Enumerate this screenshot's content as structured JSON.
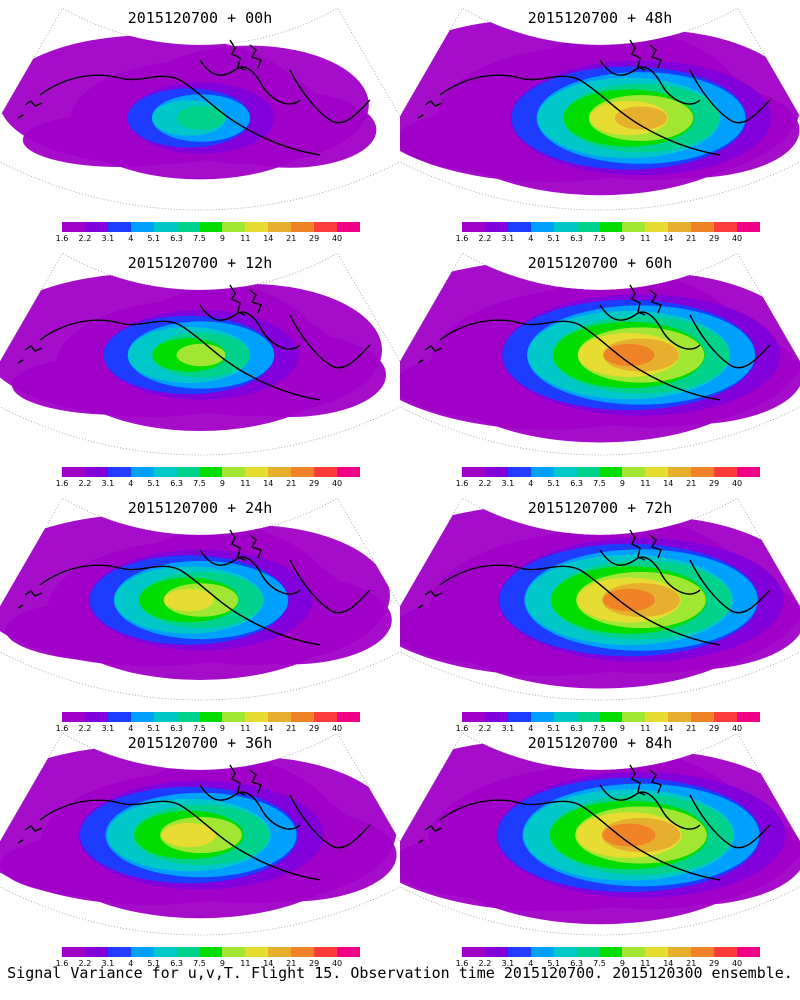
{
  "caption": "Signal Variance for u,v,T. Flight 15. Observation time 2015120700. 2015120300 ensemble.",
  "colorbar": {
    "labels": [
      "1.6",
      "2.2",
      "3.1",
      "4",
      "5.1",
      "6.3",
      "7.5",
      "9",
      "11",
      "14",
      "21",
      "29",
      "40"
    ],
    "colors": [
      "#a000c8",
      "#8200dc",
      "#1e3cff",
      "#00a0ff",
      "#00c8c8",
      "#00d28c",
      "#00dc00",
      "#a0e632",
      "#e6dc32",
      "#e6af2d",
      "#f08228",
      "#fa3c3c",
      "#f00082"
    ]
  },
  "panels": [
    {
      "title": "2015120700 + 00h",
      "lead_hours": 0,
      "intensity": 0.3
    },
    {
      "title": "2015120700 + 48h",
      "lead_hours": 48,
      "intensity": 0.78
    },
    {
      "title": "2015120700 + 12h",
      "lead_hours": 12,
      "intensity": 0.5
    },
    {
      "title": "2015120700 + 60h",
      "lead_hours": 60,
      "intensity": 0.85
    },
    {
      "title": "2015120700 + 24h",
      "lead_hours": 24,
      "intensity": 0.62
    },
    {
      "title": "2015120700 + 72h",
      "lead_hours": 72,
      "intensity": 0.88
    },
    {
      "title": "2015120700 + 36h",
      "lead_hours": 36,
      "intensity": 0.72
    },
    {
      "title": "2015120700 + 84h",
      "lead_hours": 84,
      "intensity": 0.9
    }
  ]
}
